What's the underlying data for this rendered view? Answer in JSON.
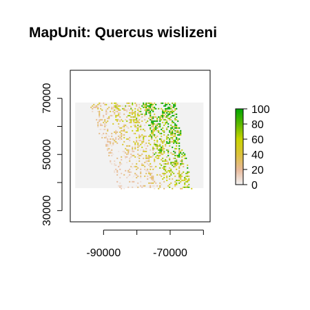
{
  "title": "MapUnit: Quercus wislizeni",
  "chart_data": {
    "type": "heatmap",
    "title": "MapUnit: Quercus wislizeni",
    "x_axis": {
      "range": [
        -100000,
        -58000
      ],
      "ticks": [
        -90000,
        -70000
      ],
      "tick_labels": [
        "-90000",
        "-70000"
      ]
    },
    "y_axis": {
      "range": [
        26000,
        80000
      ],
      "ticks": [
        30000,
        50000,
        70000
      ],
      "tick_labels": [
        "30000",
        "50000",
        "70000"
      ]
    },
    "raster_extent": {
      "x": [
        -98500,
        -60000
      ],
      "y": [
        38000,
        68500
      ]
    },
    "legend": {
      "position": "right",
      "range": [
        0,
        100
      ],
      "ticks": [
        0,
        20,
        40,
        60,
        80,
        100
      ],
      "tick_labels": [
        "0",
        "20",
        "40",
        "60",
        "80",
        "100"
      ],
      "colors": [
        "#f2f2f2",
        "#e8b999",
        "#dcc23a",
        "#c8d400",
        "#5cb800",
        "#00a600"
      ]
    },
    "nodata_color": "#f2f2f2"
  }
}
